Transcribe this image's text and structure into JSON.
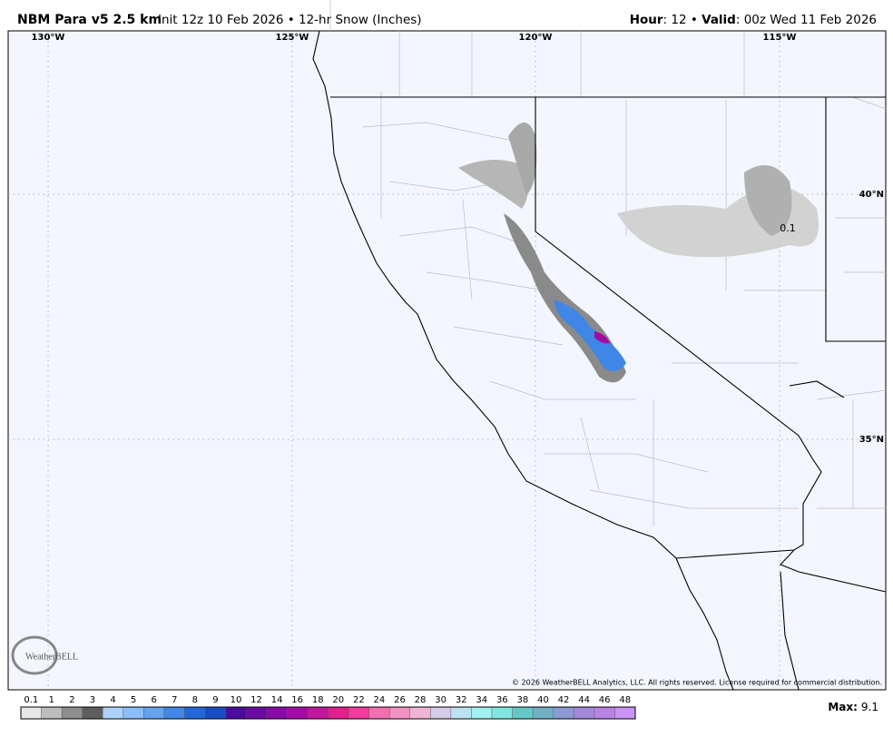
{
  "header": {
    "title": "NBM Para v5 2.5 km",
    "subtitle": "Init 12z 10 Feb 2026 • 12-hr Snow (Inches)",
    "right": [
      "Hour",
      ": 12 • ",
      "Valid",
      ": 00z Wed 11 Feb 2026"
    ]
  },
  "map": {
    "lon_labels": [
      "130°W",
      "125°W",
      "120°W",
      "115°W"
    ],
    "lat_labels": [
      "40°N",
      "35°N"
    ],
    "point_label": "0.1",
    "copyright": "© 2026 WeatherBELL Analytics, LLC. All rights reserved. License required for commercial distribution.",
    "logo": "WeatherBELL"
  },
  "colorbar": {
    "levels": [
      0.1,
      1,
      2,
      3,
      4,
      5,
      6,
      7,
      8,
      9,
      10,
      12,
      14,
      16,
      18,
      20,
      22,
      24,
      26,
      28,
      30,
      32,
      34,
      36,
      38,
      40,
      42,
      44,
      46,
      48
    ],
    "colors": [
      "#e8e8e8",
      "#bdbdbd",
      "#8e8e8e",
      "#5e5e5e",
      "#aed2fa",
      "#8cbdf5",
      "#66a3ee",
      "#4287e6",
      "#2467d9",
      "#1a4cc2",
      "#4a0d9c",
      "#690aa4",
      "#880aa8",
      "#a40aa4",
      "#c0189a",
      "#e0208c",
      "#f03c9c",
      "#f070b2",
      "#f292c4",
      "#f0b4d4",
      "#d4cce8",
      "#bce2f2",
      "#a2f0f0",
      "#82e6de",
      "#64c8c8",
      "#72b0c4",
      "#8a9ad2",
      "#a28ad8",
      "#b882e0",
      "#cc92f2"
    ]
  },
  "max": {
    "label": "Max:",
    "value": 9.1
  }
}
